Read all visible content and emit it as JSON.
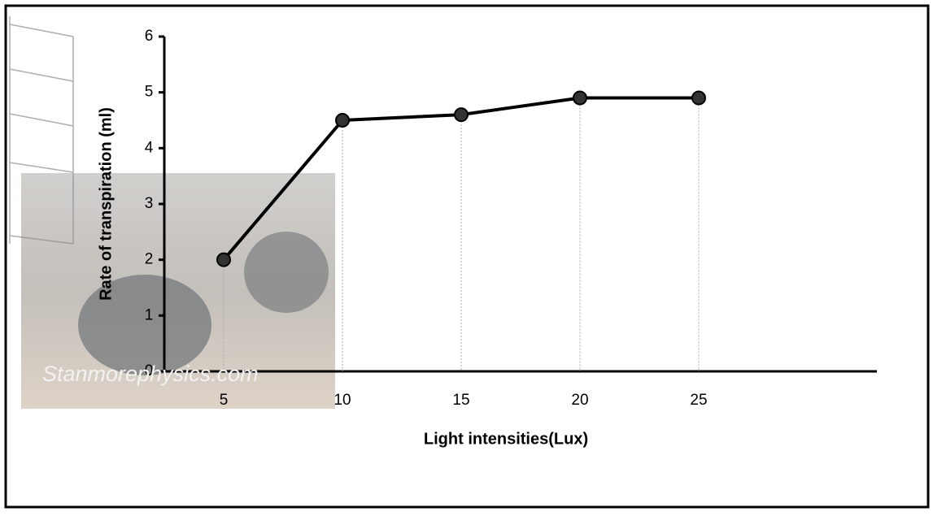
{
  "chart_data": {
    "type": "line",
    "y_axis_label": "Rate of transpiration (ml)",
    "x_axis_label": "Light intensities(Lux)",
    "watermark": "Stanmorephysics.com",
    "x": [
      5,
      10,
      15,
      20,
      25
    ],
    "values": [
      2,
      4.5,
      4.6,
      4.9,
      4.9
    ],
    "color": "#000000",
    "xlim": [
      2.5,
      32.5
    ],
    "xticks": [
      5,
      10,
      15,
      20,
      25
    ],
    "ylim": [
      0,
      6
    ],
    "yticks": [
      0,
      1,
      2,
      3,
      4,
      5,
      6
    ],
    "drop_lines": true
  }
}
